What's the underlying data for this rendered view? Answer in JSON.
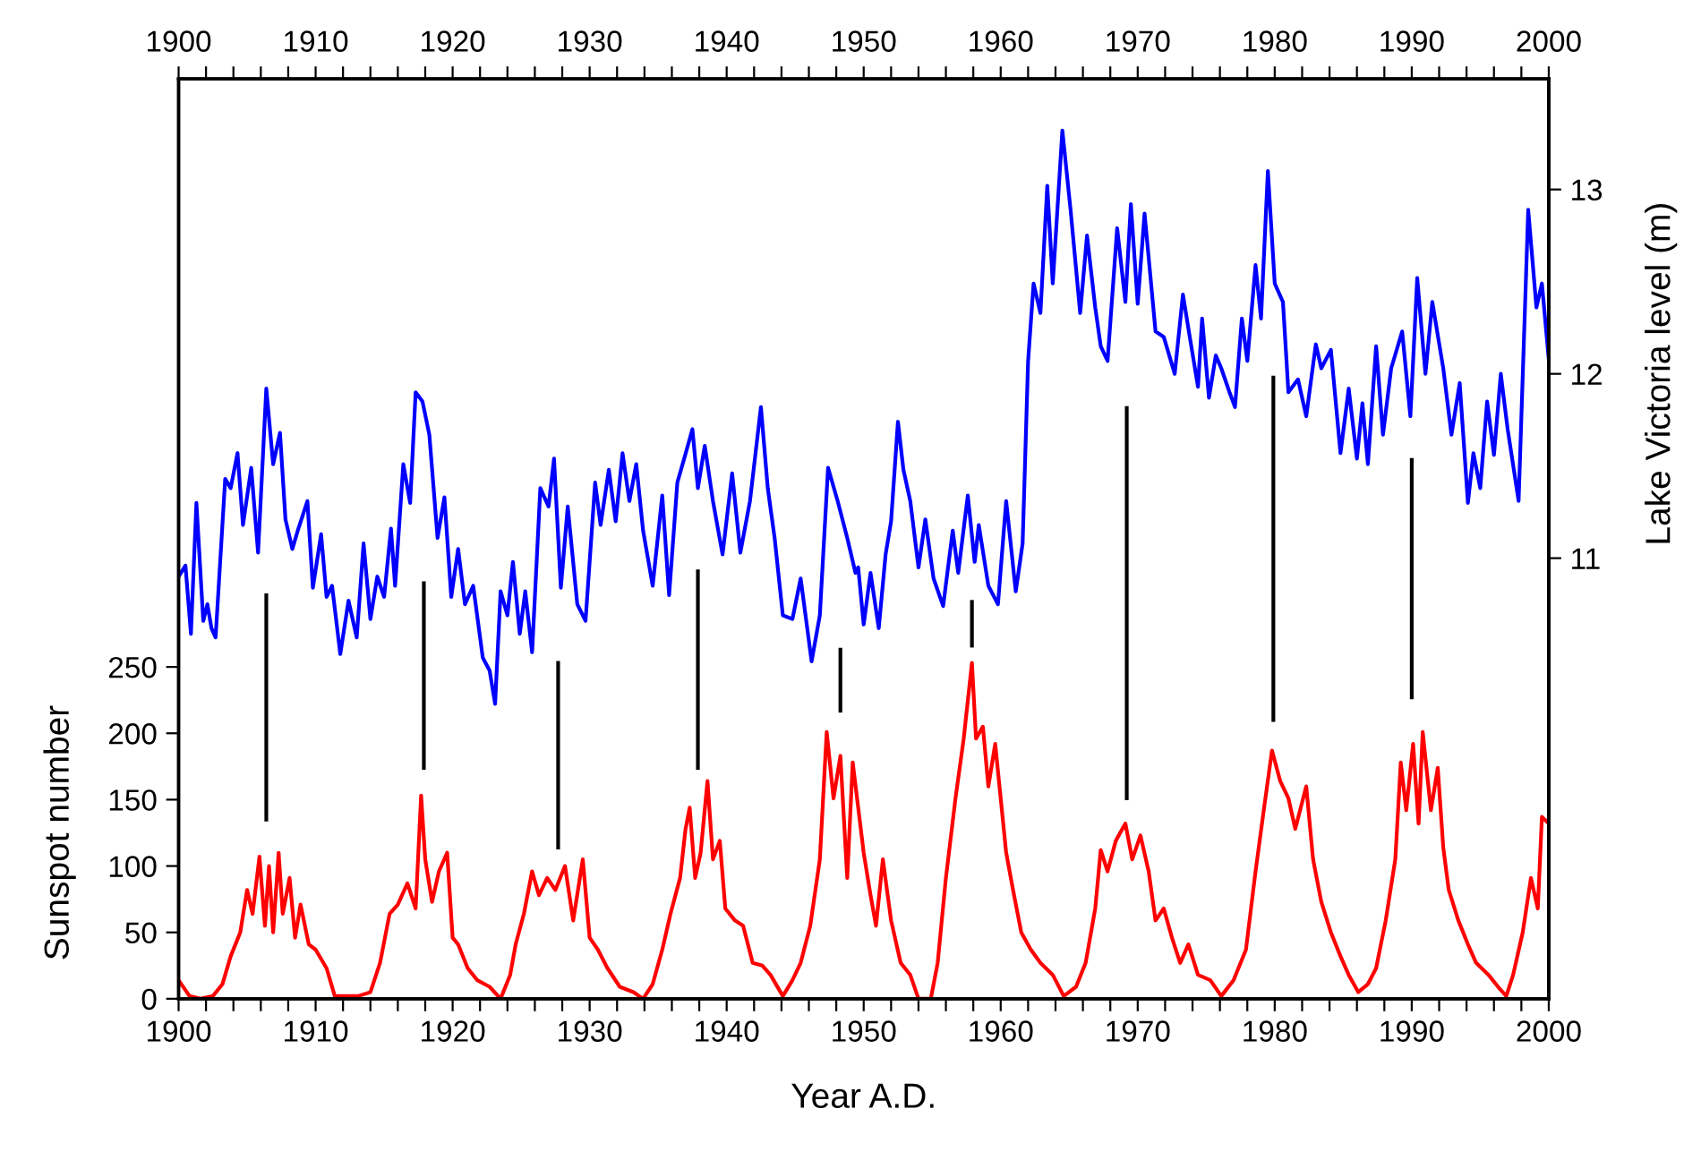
{
  "chart_data": {
    "type": "line",
    "xlabel": "Year A.D.",
    "ylabel": "Sunspot number",
    "y2label": "Lake Victoria level (m)",
    "xlim": [
      1900,
      2000
    ],
    "x2lim": [
      1900,
      2000
    ],
    "xticks": [
      1900,
      {
        "value": 1902,
        "label": null
      },
      {
        "value": 1904,
        "label": null
      },
      {
        "value": 1906,
        "label": null
      },
      {
        "value": 1908,
        "label": null
      },
      1910,
      {
        "value": 1912,
        "label": null
      },
      {
        "value": 1914,
        "label": null
      },
      {
        "value": 1916,
        "label": null
      },
      {
        "value": 1918,
        "label": null
      },
      1920,
      {
        "value": 1922,
        "label": null
      },
      {
        "value": 1924,
        "label": null
      },
      {
        "value": 1926,
        "label": null
      },
      {
        "value": 1928,
        "label": null
      },
      1930,
      {
        "value": 1932,
        "label": null
      },
      {
        "value": 1934,
        "label": null
      },
      {
        "value": 1936,
        "label": null
      },
      {
        "value": 1938,
        "label": null
      },
      1940,
      {
        "value": 1942,
        "label": null
      },
      {
        "value": 1944,
        "label": null
      },
      {
        "value": 1946,
        "label": null
      },
      {
        "value": 1948,
        "label": null
      },
      1950,
      {
        "value": 1952,
        "label": null
      },
      {
        "value": 1954,
        "label": null
      },
      {
        "value": 1956,
        "label": null
      },
      {
        "value": 1958,
        "label": null
      },
      1960,
      {
        "value": 1962,
        "label": null
      },
      {
        "value": 1964,
        "label": null
      },
      {
        "value": 1966,
        "label": null
      },
      {
        "value": 1968,
        "label": null
      },
      1970,
      {
        "value": 1972,
        "label": null
      },
      {
        "value": 1974,
        "label": null
      },
      {
        "value": 1976,
        "label": null
      },
      {
        "value": 1978,
        "label": null
      },
      1980,
      {
        "value": 1982,
        "label": null
      },
      {
        "value": 1984,
        "label": null
      },
      {
        "value": 1986,
        "label": null
      },
      {
        "value": 1988,
        "label": null
      },
      1990,
      {
        "value": 1992,
        "label": null
      },
      {
        "value": 1994,
        "label": null
      },
      {
        "value": 1996,
        "label": null
      },
      {
        "value": 1998,
        "label": null
      },
      2000
    ],
    "x2ticks": [
      1900,
      {
        "value": 1902,
        "label": null
      },
      {
        "value": 1904,
        "label": null
      },
      {
        "value": 1906,
        "label": null
      },
      {
        "value": 1908,
        "label": null
      },
      1910,
      {
        "value": 1912,
        "label": null
      },
      {
        "value": 1914,
        "label": null
      },
      {
        "value": 1916,
        "label": null
      },
      {
        "value": 1918,
        "label": null
      },
      1920,
      {
        "value": 1922,
        "label": null
      },
      {
        "value": 1924,
        "label": null
      },
      {
        "value": 1926,
        "label": null
      },
      {
        "value": 1928,
        "label": null
      },
      1930,
      {
        "value": 1932,
        "label": null
      },
      {
        "value": 1934,
        "label": null
      },
      {
        "value": 1936,
        "label": null
      },
      {
        "value": 1938,
        "label": null
      },
      1940,
      {
        "value": 1942,
        "label": null
      },
      {
        "value": 1944,
        "label": null
      },
      {
        "value": 1946,
        "label": null
      },
      {
        "value": 1948,
        "label": null
      },
      1950,
      {
        "value": 1952,
        "label": null
      },
      {
        "value": 1954,
        "label": null
      },
      {
        "value": 1956,
        "label": null
      },
      {
        "value": 1958,
        "label": null
      },
      1960,
      {
        "value": 1962,
        "label": null
      },
      {
        "value": 1964,
        "label": null
      },
      {
        "value": 1966,
        "label": null
      },
      {
        "value": 1968,
        "label": null
      },
      1970,
      {
        "value": 1972,
        "label": null
      },
      {
        "value": 1974,
        "label": null
      },
      {
        "value": 1976,
        "label": null
      },
      {
        "value": 1978,
        "label": null
      },
      1980,
      {
        "value": 1982,
        "label": null
      },
      {
        "value": 1984,
        "label": null
      },
      {
        "value": 1986,
        "label": null
      },
      {
        "value": 1988,
        "label": null
      },
      1990,
      {
        "value": 1992,
        "label": null
      },
      {
        "value": 1994,
        "label": null
      },
      {
        "value": 1996,
        "label": null
      },
      {
        "value": 1998,
        "label": null
      },
      2000
    ],
    "ylim": [
      0,
      693
    ],
    "yticks": [
      0,
      50,
      100,
      150,
      200,
      250
    ],
    "y2lim": [
      8.61,
      13.6
    ],
    "y2ticks": [
      11,
      12,
      13
    ],
    "grid": false,
    "marker": "none",
    "line_style": "solid",
    "series": [
      {
        "axis": "y2",
        "color": "#0000ff",
        "x": [
          1900.0,
          1900.5,
          1900.9,
          1901.3,
          1901.8,
          1902.1,
          1902.4,
          1902.7,
          1903.4,
          1903.8,
          1904.3,
          1904.7,
          1905.3,
          1905.8,
          1906.4,
          1906.9,
          1907.4,
          1907.8,
          1908.3,
          1908.7,
          1909.4,
          1909.8,
          1910.4,
          1910.8,
          1911.2,
          1911.8,
          1912.4,
          1913.0,
          1913.5,
          1914.0,
          1914.5,
          1915.0,
          1915.5,
          1915.8,
          1916.4,
          1916.9,
          1917.3,
          1917.8,
          1918.3,
          1918.9,
          1919.4,
          1919.9,
          1920.4,
          1920.9,
          1921.5,
          1922.2,
          1922.7,
          1923.1,
          1923.5,
          1924.0,
          1924.4,
          1924.9,
          1925.3,
          1925.8,
          1926.4,
          1927.0,
          1927.4,
          1927.9,
          1928.4,
          1929.1,
          1929.7,
          1930.4,
          1930.8,
          1931.4,
          1931.9,
          1932.4,
          1932.9,
          1933.4,
          1933.9,
          1934.6,
          1935.3,
          1935.8,
          1936.4,
          1936.9,
          1937.5,
          1937.9,
          1938.4,
          1939.0,
          1939.7,
          1940.4,
          1941.0,
          1941.7,
          1942.5,
          1943.0,
          1943.5,
          1944.1,
          1944.8,
          1945.4,
          1946.2,
          1946.8,
          1947.4,
          1948.1,
          1948.8,
          1949.4,
          1949.6,
          1950.0,
          1950.5,
          1951.1,
          1951.6,
          1952.0,
          1952.5,
          1952.9,
          1953.4,
          1954.0,
          1954.5,
          1955.1,
          1955.8,
          1956.5,
          1956.9,
          1957.6,
          1958.1,
          1958.4,
          1959.1,
          1959.8,
          1960.4,
          1961.1,
          1961.6,
          1962.0,
          1962.4,
          1962.9,
          1963.4,
          1963.8,
          1964.5,
          1965.1,
          1965.8,
          1966.3,
          1966.9,
          1967.3,
          1967.8,
          1968.5,
          1969.1,
          1969.5,
          1970.0,
          1970.5,
          1971.3,
          1971.9,
          1972.7,
          1973.3,
          1973.8,
          1974.4,
          1974.7,
          1975.2,
          1975.7,
          1976.1,
          1976.7,
          1977.1,
          1977.6,
          1978.0,
          1978.6,
          1979.0,
          1979.5,
          1980.0,
          1980.6,
          1981.0,
          1981.7,
          1982.3,
          1983.0,
          1983.4,
          1984.1,
          1984.8,
          1985.4,
          1986.0,
          1986.4,
          1986.8,
          1987.4,
          1987.9,
          1988.5,
          1989.3,
          1989.9,
          1990.4,
          1991.0,
          1991.5,
          1992.3,
          1992.9,
          1993.5,
          1994.1,
          1994.5,
          1995.0,
          1995.5,
          1996.0,
          1996.5,
          1997.0,
          1997.8,
          1998.5,
          1999.1,
          1999.5,
          2000.0
        ],
        "values": [
          10.9,
          10.96,
          10.59,
          11.3,
          10.66,
          10.75,
          10.62,
          10.57,
          11.43,
          11.38,
          11.57,
          11.18,
          11.49,
          11.03,
          11.92,
          11.51,
          11.68,
          11.21,
          11.05,
          11.15,
          11.31,
          10.84,
          11.13,
          10.79,
          10.85,
          10.48,
          10.77,
          10.57,
          11.08,
          10.67,
          10.9,
          10.79,
          11.16,
          10.85,
          11.51,
          11.3,
          11.9,
          11.85,
          11.67,
          11.11,
          11.33,
          10.79,
          11.05,
          10.75,
          10.85,
          10.46,
          10.39,
          10.21,
          10.82,
          10.69,
          10.98,
          10.59,
          10.82,
          10.49,
          11.38,
          11.28,
          11.54,
          10.84,
          11.28,
          10.75,
          10.66,
          11.41,
          11.18,
          11.48,
          11.2,
          11.57,
          11.31,
          11.51,
          11.15,
          10.85,
          11.34,
          10.8,
          11.41,
          11.54,
          11.7,
          11.38,
          11.61,
          11.31,
          11.02,
          11.46,
          11.03,
          11.31,
          11.82,
          11.38,
          11.11,
          10.69,
          10.67,
          10.89,
          10.44,
          10.69,
          11.49,
          11.31,
          11.11,
          10.92,
          10.95,
          10.64,
          10.92,
          10.62,
          11.02,
          11.2,
          11.74,
          11.48,
          11.31,
          10.95,
          11.21,
          10.89,
          10.74,
          11.15,
          10.92,
          11.34,
          10.98,
          11.18,
          10.85,
          10.75,
          11.31,
          10.82,
          11.08,
          12.07,
          12.49,
          12.33,
          13.02,
          12.49,
          13.32,
          12.89,
          12.33,
          12.75,
          12.36,
          12.15,
          12.07,
          12.79,
          12.39,
          12.92,
          12.38,
          12.87,
          12.23,
          12.2,
          12.0,
          12.43,
          12.2,
          11.93,
          12.3,
          11.87,
          12.1,
          12.03,
          11.9,
          11.82,
          12.3,
          12.07,
          12.59,
          12.3,
          13.1,
          12.49,
          12.39,
          11.9,
          11.97,
          11.77,
          12.16,
          12.03,
          12.13,
          11.57,
          11.92,
          11.54,
          11.84,
          11.51,
          12.15,
          11.67,
          12.03,
          12.23,
          11.77,
          12.52,
          12.0,
          12.39,
          12.03,
          11.67,
          11.95,
          11.3,
          11.57,
          11.38,
          11.85,
          11.56,
          12.0,
          11.7,
          11.31,
          12.89,
          12.36,
          12.49,
          12.08
        ]
      },
      {
        "axis": "y",
        "color": "#ff0000",
        "x": [
          1900.0,
          1900.8,
          1901.6,
          1902.5,
          1903.2,
          1903.8,
          1904.5,
          1905.0,
          1905.4,
          1905.9,
          1906.3,
          1906.6,
          1906.9,
          1907.3,
          1907.6,
          1908.1,
          1908.5,
          1908.9,
          1909.5,
          1910.0,
          1910.8,
          1911.4,
          1912.3,
          1913.1,
          1914.0,
          1914.7,
          1915.4,
          1916.0,
          1916.7,
          1917.3,
          1917.7,
          1918.0,
          1918.5,
          1919.0,
          1919.6,
          1920.0,
          1920.4,
          1921.1,
          1921.8,
          1922.7,
          1923.5,
          1924.2,
          1924.6,
          1925.2,
          1925.8,
          1926.3,
          1926.9,
          1927.5,
          1928.2,
          1928.8,
          1929.5,
          1930.0,
          1930.6,
          1931.3,
          1932.2,
          1933.2,
          1933.9,
          1934.6,
          1935.3,
          1935.9,
          1936.6,
          1937.0,
          1937.3,
          1937.7,
          1938.1,
          1938.6,
          1939.0,
          1939.5,
          1939.9,
          1940.6,
          1941.2,
          1941.9,
          1942.6,
          1943.2,
          1944.1,
          1944.8,
          1945.4,
          1946.1,
          1946.8,
          1947.3,
          1947.8,
          1948.3,
          1948.8,
          1949.2,
          1949.6,
          1950.0,
          1950.5,
          1950.9,
          1951.4,
          1952.0,
          1952.7,
          1953.4,
          1954.0,
          1954.9,
          1955.4,
          1956.0,
          1956.7,
          1957.3,
          1957.9,
          1958.2,
          1958.7,
          1959.1,
          1959.6,
          1960.0,
          1960.4,
          1960.9,
          1961.5,
          1962.2,
          1962.9,
          1963.8,
          1964.6,
          1965.5,
          1966.2,
          1966.9,
          1967.3,
          1967.8,
          1968.4,
          1969.1,
          1969.6,
          1970.2,
          1970.8,
          1971.3,
          1971.9,
          1972.5,
          1973.1,
          1973.7,
          1974.4,
          1975.3,
          1976.1,
          1977.0,
          1977.9,
          1978.6,
          1979.2,
          1979.8,
          1980.4,
          1981.0,
          1981.5,
          1982.3,
          1982.8,
          1983.4,
          1984.1,
          1984.8,
          1985.4,
          1986.1,
          1986.8,
          1987.4,
          1988.1,
          1988.8,
          1989.2,
          1989.6,
          1990.1,
          1990.5,
          1990.8,
          1991.4,
          1991.9,
          1992.3,
          1992.7,
          1993.4,
          1994.1,
          1994.7,
          1995.6,
          1996.3,
          1996.9,
          1997.4,
          1998.1,
          1998.7,
          1999.2,
          1999.5,
          2000.0
        ],
        "values": [
          14,
          2,
          0,
          2,
          11,
          32,
          50,
          82,
          64,
          107,
          55,
          100,
          50,
          110,
          64,
          91,
          46,
          71,
          41,
          37,
          23,
          2,
          2,
          2,
          5,
          27,
          64,
          71,
          87,
          68,
          153,
          105,
          73,
          96,
          110,
          46,
          41,
          23,
          14,
          9,
          0,
          18,
          41,
          64,
          96,
          78,
          91,
          82,
          100,
          59,
          105,
          46,
          37,
          23,
          9,
          5,
          0,
          11,
          37,
          64,
          91,
          128,
          144,
          91,
          110,
          164,
          105,
          119,
          68,
          59,
          55,
          27,
          25,
          18,
          2,
          14,
          27,
          55,
          105,
          201,
          151,
          183,
          91,
          178,
          144,
          110,
          78,
          55,
          105,
          59,
          27,
          18,
          0,
          0,
          27,
          91,
          151,
          196,
          253,
          196,
          205,
          160,
          192,
          151,
          110,
          82,
          50,
          37,
          27,
          18,
          2,
          9,
          27,
          68,
          112,
          96,
          119,
          132,
          105,
          123,
          96,
          59,
          68,
          46,
          27,
          41,
          18,
          14,
          2,
          14,
          37,
          96,
          142,
          187,
          164,
          151,
          128,
          160,
          105,
          73,
          50,
          32,
          18,
          5,
          11,
          23,
          59,
          105,
          178,
          142,
          192,
          132,
          201,
          142,
          174,
          114,
          82,
          59,
          41,
          27,
          18,
          9,
          2,
          18,
          50,
          91,
          68,
          137,
          132
        ]
      },
      {
        "axis": "y",
        "color": "#000000",
        "x": [
          1906.4,
          1906.4
        ],
        "values": [
          304,
          135
        ]
      },
      {
        "axis": "y",
        "color": "#000000",
        "x": [
          1917.9,
          1917.9
        ],
        "values": [
          313,
          174
        ]
      },
      {
        "axis": "y",
        "color": "#000000",
        "x": [
          1927.7,
          1927.7
        ],
        "values": [
          253,
          114
        ]
      },
      {
        "axis": "y",
        "color": "#000000",
        "x": [
          1937.9,
          1937.9
        ],
        "values": [
          322,
          174
        ]
      },
      {
        "axis": "y",
        "color": "#000000",
        "x": [
          1948.3,
          1948.3
        ],
        "values": [
          263,
          217
        ]
      },
      {
        "axis": "y",
        "color": "#000000",
        "x": [
          1957.9,
          1957.9
        ],
        "values": [
          299,
          266
        ]
      },
      {
        "axis": "y",
        "color": "#000000",
        "x": [
          1969.2,
          1969.2
        ],
        "values": [
          445,
          151
        ]
      },
      {
        "axis": "y",
        "color": "#000000",
        "x": [
          1979.9,
          1979.9
        ],
        "values": [
          468,
          210
        ]
      },
      {
        "axis": "y",
        "color": "#000000",
        "x": [
          1990.0,
          1990.0
        ],
        "values": [
          406,
          227
        ]
      }
    ]
  }
}
